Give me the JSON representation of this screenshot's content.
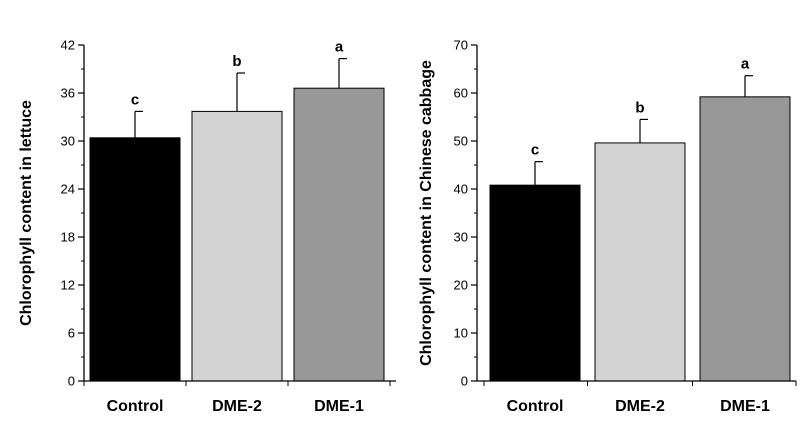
{
  "chart_data": [
    {
      "type": "bar",
      "title": "",
      "xlabel": "",
      "ylabel": "Chlorophyll content in lettuce",
      "categories": [
        "Control",
        "DME-2",
        "DME-1"
      ],
      "values": [
        30.4,
        33.7,
        36.6
      ],
      "errors": [
        3.3,
        4.8,
        3.7
      ],
      "significance": [
        "c",
        "b",
        "a"
      ],
      "bar_colors": [
        "#000000",
        "#d3d3d3",
        "#989898"
      ],
      "ylim": [
        0,
        42
      ],
      "yticks": [
        0,
        6,
        12,
        18,
        24,
        30,
        36,
        42
      ],
      "ytick_labels": [
        "0",
        "6",
        "12",
        "18",
        "24",
        "30",
        "36",
        "42"
      ],
      "grid": false,
      "legend": "none"
    },
    {
      "type": "bar",
      "title": "",
      "xlabel": "",
      "ylabel": "Chlorophyll content in Chinese cabbage",
      "categories": [
        "Control",
        "DME-2",
        "DME-1"
      ],
      "values": [
        40.8,
        49.6,
        59.2
      ],
      "errors": [
        4.9,
        4.9,
        4.4
      ],
      "significance": [
        "c",
        "b",
        "a"
      ],
      "bar_colors": [
        "#000000",
        "#d3d3d3",
        "#989898"
      ],
      "ylim": [
        0,
        70
      ],
      "yticks": [
        0,
        10,
        20,
        30,
        40,
        50,
        60,
        70
      ],
      "ytick_labels": [
        "0",
        "10",
        "20",
        "30",
        "40",
        "50",
        "60",
        "70"
      ],
      "grid": false,
      "legend": "none"
    }
  ]
}
